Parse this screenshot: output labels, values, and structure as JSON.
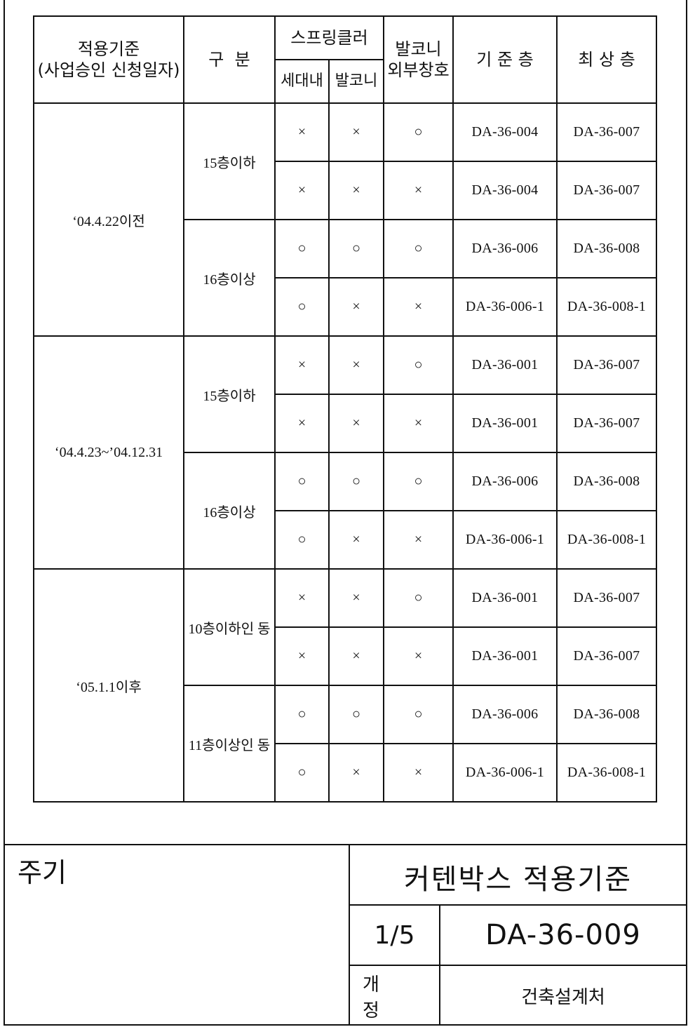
{
  "header": {
    "standard": "적용기준\n(사업승인 신청일자)",
    "category": "구  분",
    "sprinkler": "스프링클러",
    "sprinkler_in": "세대내",
    "sprinkler_bal": "발코니",
    "balcony_window": "발코니\n외부창호",
    "base_floor": "기 준 층",
    "top_floor": "최 상 층"
  },
  "groups": [
    {
      "standard": "‘04.4.22이전",
      "categories": [
        {
          "label": "15층이하",
          "rows": [
            {
              "in": "×",
              "bal": "×",
              "win": "○",
              "base": "DA-36-004",
              "top": "DA-36-007"
            },
            {
              "in": "×",
              "bal": "×",
              "win": "×",
              "base": "DA-36-004",
              "top": "DA-36-007"
            }
          ]
        },
        {
          "label": "16층이상",
          "rows": [
            {
              "in": "○",
              "bal": "○",
              "win": "○",
              "base": "DA-36-006",
              "top": "DA-36-008"
            },
            {
              "in": "○",
              "bal": "×",
              "win": "×",
              "base": "DA-36-006-1",
              "top": "DA-36-008-1"
            }
          ]
        }
      ]
    },
    {
      "standard": "‘04.4.23~’04.12.31",
      "categories": [
        {
          "label": "15층이하",
          "rows": [
            {
              "in": "×",
              "bal": "×",
              "win": "○",
              "base": "DA-36-001",
              "top": "DA-36-007"
            },
            {
              "in": "×",
              "bal": "×",
              "win": "×",
              "base": "DA-36-001",
              "top": "DA-36-007"
            }
          ]
        },
        {
          "label": "16층이상",
          "rows": [
            {
              "in": "○",
              "bal": "○",
              "win": "○",
              "base": "DA-36-006",
              "top": "DA-36-008"
            },
            {
              "in": "○",
              "bal": "×",
              "win": "×",
              "base": "DA-36-006-1",
              "top": "DA-36-008-1"
            }
          ]
        }
      ]
    },
    {
      "standard": "‘05.1.1이후",
      "categories": [
        {
          "label": "10층이하인 동",
          "rows": [
            {
              "in": "×",
              "bal": "×",
              "win": "○",
              "base": "DA-36-001",
              "top": "DA-36-007"
            },
            {
              "in": "×",
              "bal": "×",
              "win": "×",
              "base": "DA-36-001",
              "top": "DA-36-007"
            }
          ]
        },
        {
          "label": "11층이상인 동",
          "rows": [
            {
              "in": "○",
              "bal": "○",
              "win": "○",
              "base": "DA-36-006",
              "top": "DA-36-008"
            },
            {
              "in": "○",
              "bal": "×",
              "win": "×",
              "base": "DA-36-006-1",
              "top": "DA-36-008-1"
            }
          ]
        }
      ]
    }
  ],
  "title_block": {
    "note_label": "주기",
    "title": "커텐박스 적용기준",
    "page": "1/5",
    "doc_no": "DA-36-009",
    "revision_label": "개 정",
    "department": "건축설계처"
  }
}
